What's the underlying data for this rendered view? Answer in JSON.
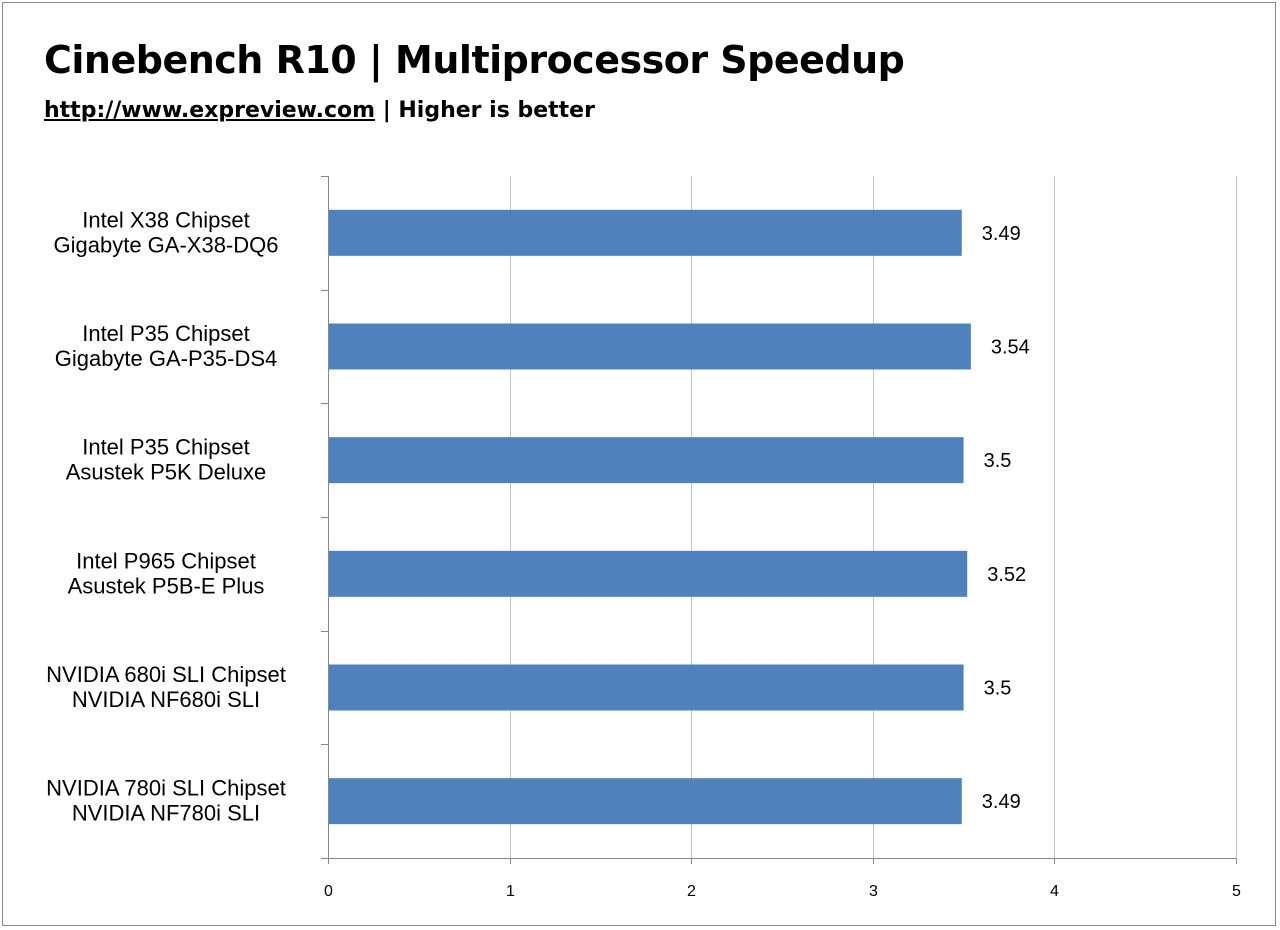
{
  "chart_data": {
    "type": "bar",
    "orientation": "horizontal",
    "title": "Cinebench R10 | Multiprocessor Speedup",
    "subtitle_link": "http://www.expreview.com",
    "subtitle_rest": " | Higher is better",
    "categories": [
      [
        "Intel X38 Chipset",
        "Gigabyte GA-X38-DQ6"
      ],
      [
        "Intel P35 Chipset",
        "Gigabyte GA-P35-DS4"
      ],
      [
        "Intel P35 Chipset",
        "Asustek P5K Deluxe"
      ],
      [
        "Intel P965 Chipset",
        "Asustek P5B-E Plus"
      ],
      [
        "NVIDIA 680i SLI  Chipset",
        "NVIDIA NF680i SLI"
      ],
      [
        "NVIDIA 780i SLI  Chipset",
        "NVIDIA NF780i SLI"
      ]
    ],
    "values": [
      3.49,
      3.54,
      3.5,
      3.52,
      3.5,
      3.49
    ],
    "value_labels": [
      "3.49",
      "3.54",
      "3.5",
      "3.52",
      "3.5",
      "3.49"
    ],
    "xlim": [
      0,
      5
    ],
    "xticks": [
      "0",
      "1",
      "2",
      "3",
      "4",
      "5"
    ],
    "grid": true,
    "legend": "none",
    "colors": {
      "bar": "#4F81BD",
      "grid": "#B9C7DA",
      "axis": "#888888"
    }
  }
}
